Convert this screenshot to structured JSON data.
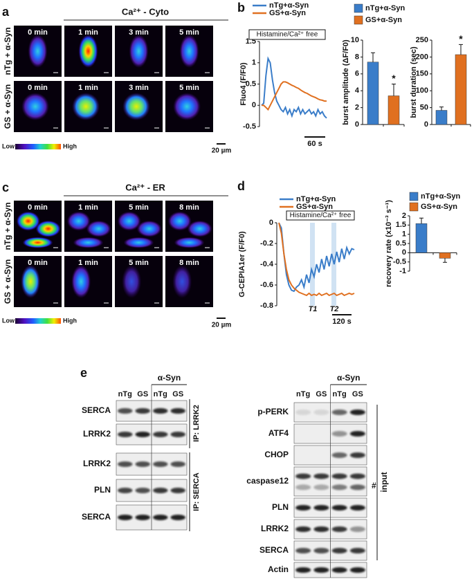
{
  "panels": {
    "a": {
      "label": "a",
      "title": "Ca²⁺ - Cyto",
      "rows": [
        "nTg + α-Syn",
        "GS + α-Syn"
      ],
      "times": [
        "0 min",
        "1 min",
        "3 min",
        "5 min"
      ],
      "colorbar": {
        "low": "Low",
        "high": "High"
      },
      "scale": "20 µm"
    },
    "b": {
      "label": "b",
      "legend": [
        {
          "name": "nTg+α-Syn",
          "color": "#3a7dc9"
        },
        {
          "name": "GS+α-Syn",
          "color": "#e07020"
        }
      ]
    },
    "c": {
      "label": "c",
      "title": "Ca²⁺ - ER",
      "rows": [
        "nTg + α-Syn",
        "GS + α-Syn"
      ],
      "times": [
        "0 min",
        "1 min",
        "5 min",
        "8 min"
      ],
      "colorbar": {
        "low": "Low",
        "high": "High"
      },
      "scale": "20 µm"
    },
    "d": {
      "label": "d",
      "legend": [
        {
          "name": "nTg+α-Syn",
          "color": "#3a7dc9"
        },
        {
          "name": "GS+α-Syn",
          "color": "#e07020"
        }
      ]
    },
    "e": {
      "label": "e",
      "left": {
        "group": "α-Syn",
        "lanes": [
          "nTg",
          "GS",
          "nTg",
          "GS"
        ],
        "rows": [
          "SERCA",
          "LRRK2",
          "LRRK2",
          "PLN",
          "SERCA"
        ],
        "ip": [
          "IP: LRRK2",
          "IP: SERCA"
        ]
      },
      "right": {
        "group": "α-Syn",
        "lanes": [
          "nTg",
          "GS",
          "nTg",
          "GS"
        ],
        "rows": [
          "p-PERK",
          "ATF4",
          "CHOP",
          "caspase12",
          "PLN",
          "LRRK2",
          "SERCA",
          "Actin"
        ],
        "mark": "#",
        "input": "input"
      }
    }
  },
  "chart_data": [
    {
      "type": "line",
      "y_label": "Fluo4 (F/F0)",
      "box": "Histamine/Ca²⁺ free",
      "scale": "60 s",
      "ylim": [
        -0.5,
        1.5
      ],
      "yticks": [
        -0.5,
        0,
        0.5,
        1,
        1.5
      ],
      "series": [
        {
          "name": "nTg+α-Syn",
          "color": "#3a7dc9",
          "values": [
            0,
            0.05,
            0.7,
            1.1,
            1.0,
            0.6,
            0.3,
            0.1,
            0.0,
            -0.1,
            -0.15,
            -0.05,
            -0.2,
            -0.1,
            -0.25,
            -0.1,
            -0.15,
            -0.05,
            -0.2,
            -0.1,
            -0.2,
            -0.15,
            -0.1,
            -0.2,
            -0.15,
            -0.25,
            -0.1,
            -0.2,
            -0.15,
            -0.25,
            -0.3
          ]
        },
        {
          "name": "GS+α-Syn",
          "color": "#e07020",
          "values": [
            0,
            0,
            -0.05,
            -0.1,
            0.0,
            0.1,
            0.2,
            0.3,
            0.4,
            0.5,
            0.55,
            0.55,
            0.53,
            0.5,
            0.47,
            0.45,
            0.42,
            0.4,
            0.36,
            0.33,
            0.3,
            0.28,
            0.25,
            0.22,
            0.2,
            0.18,
            0.15,
            0.13,
            0.12,
            0.1,
            0.1
          ]
        }
      ]
    },
    {
      "type": "bar",
      "y_label": "burst amplitude (ΔF/F0)",
      "ylim": [
        0,
        10
      ],
      "yticks": [
        0,
        2,
        4,
        6,
        8,
        10
      ],
      "values": [
        7.4,
        3.4
      ],
      "errors": [
        1.1,
        1.4
      ],
      "colors": [
        "#3a7dc9",
        "#e07020"
      ],
      "star": "*"
    },
    {
      "type": "bar",
      "y_label": "burst duration (sec)",
      "ylim": [
        0,
        250
      ],
      "yticks": [
        0,
        50,
        100,
        150,
        200,
        250
      ],
      "values": [
        42,
        207
      ],
      "errors": [
        10,
        30
      ],
      "colors": [
        "#3a7dc9",
        "#e07020"
      ],
      "star": "*"
    },
    {
      "type": "line",
      "y_label": "G-CEPIA1er (F/F0)",
      "box": "Histamine/Ca²⁺ free",
      "scale": "120 s",
      "markers": [
        "T1",
        "T2"
      ],
      "ylim": [
        -0.8,
        0
      ],
      "yticks": [
        -0.8,
        -0.6,
        -0.4,
        -0.2,
        0
      ],
      "series": [
        {
          "name": "nTg+α-Syn",
          "color": "#3a7dc9",
          "values": [
            0,
            -0.05,
            -0.3,
            -0.5,
            -0.6,
            -0.65,
            -0.66,
            -0.62,
            -0.6,
            -0.55,
            -0.62,
            -0.5,
            -0.58,
            -0.45,
            -0.52,
            -0.4,
            -0.48,
            -0.35,
            -0.45,
            -0.32,
            -0.42,
            -0.3,
            -0.4,
            -0.28,
            -0.38,
            -0.25,
            -0.35,
            -0.24,
            -0.3,
            -0.25,
            -0.26
          ]
        },
        {
          "name": "GS+α-Syn",
          "color": "#e07020",
          "values": [
            0,
            -0.1,
            -0.3,
            -0.45,
            -0.55,
            -0.6,
            -0.63,
            -0.65,
            -0.67,
            -0.68,
            -0.69,
            -0.7,
            -0.68,
            -0.7,
            -0.69,
            -0.7,
            -0.68,
            -0.7,
            -0.69,
            -0.68,
            -0.7,
            -0.69,
            -0.68,
            -0.7,
            -0.69,
            -0.68,
            -0.7,
            -0.69,
            -0.68,
            -0.69,
            -0.68
          ]
        }
      ]
    },
    {
      "type": "bar",
      "y_label": "recovery rate (x10⁻³ s⁻¹)",
      "ylim": [
        -1,
        2
      ],
      "yticks": [
        -1,
        -0.5,
        0,
        0.5,
        1,
        1.5,
        2
      ],
      "values": [
        1.58,
        -0.3
      ],
      "errors": [
        0.3,
        0.22
      ],
      "colors": [
        "#3a7dc9",
        "#e07020"
      ]
    }
  ]
}
